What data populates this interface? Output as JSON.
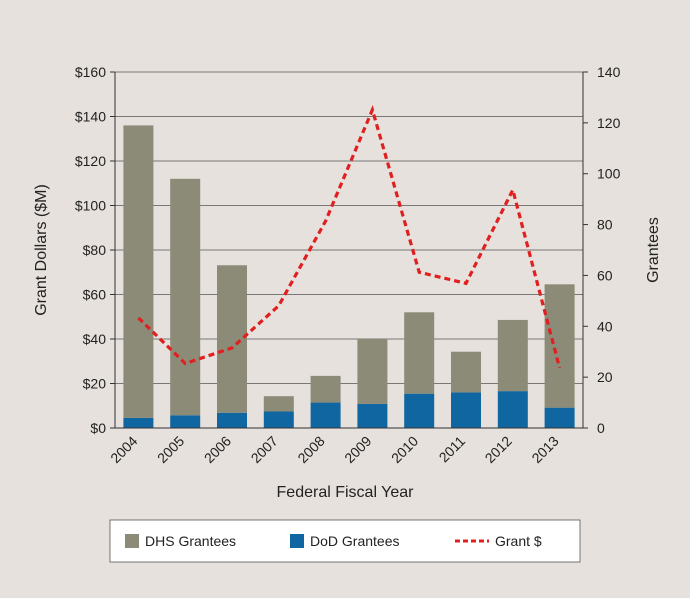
{
  "chart_data": {
    "type": "bar",
    "stacked": true,
    "title": "",
    "xlabel": "Federal Fiscal Year",
    "ylabel": "Grant Dollars ($M)",
    "y2label": "Grantees",
    "categories": [
      "2004",
      "2005",
      "2006",
      "2007",
      "2008",
      "2009",
      "2010",
      "2011",
      "2012",
      "2013"
    ],
    "series": [
      {
        "name": "DoD Grantees",
        "type": "bar",
        "axis": "right",
        "color": "#1066a0",
        "values": [
          4,
          5,
          6,
          6.5,
          10,
          9.5,
          13.5,
          14,
          14.5,
          8
        ]
      },
      {
        "name": "DHS Grantees",
        "type": "bar",
        "axis": "right",
        "color": "#8b8b78",
        "values": [
          115,
          93,
          58,
          6,
          10.5,
          25.5,
          32,
          16,
          28,
          48.5
        ]
      },
      {
        "name": "Grant $",
        "type": "line",
        "axis": "left",
        "color": "#e02020",
        "dashed": true,
        "values": [
          49.5,
          29,
          36,
          55,
          93,
          143,
          70,
          65,
          107,
          27
        ]
      }
    ],
    "ylim": [
      0,
      160
    ],
    "y2lim": [
      0,
      140
    ],
    "yticks": [
      "$0",
      "$20",
      "$40",
      "$60",
      "$80",
      "$100",
      "$120",
      "$140",
      "$160"
    ],
    "y2ticks": [
      "0",
      "20",
      "40",
      "60",
      "80",
      "100",
      "120",
      "140"
    ],
    "grid": true,
    "legend_position": "bottom"
  }
}
